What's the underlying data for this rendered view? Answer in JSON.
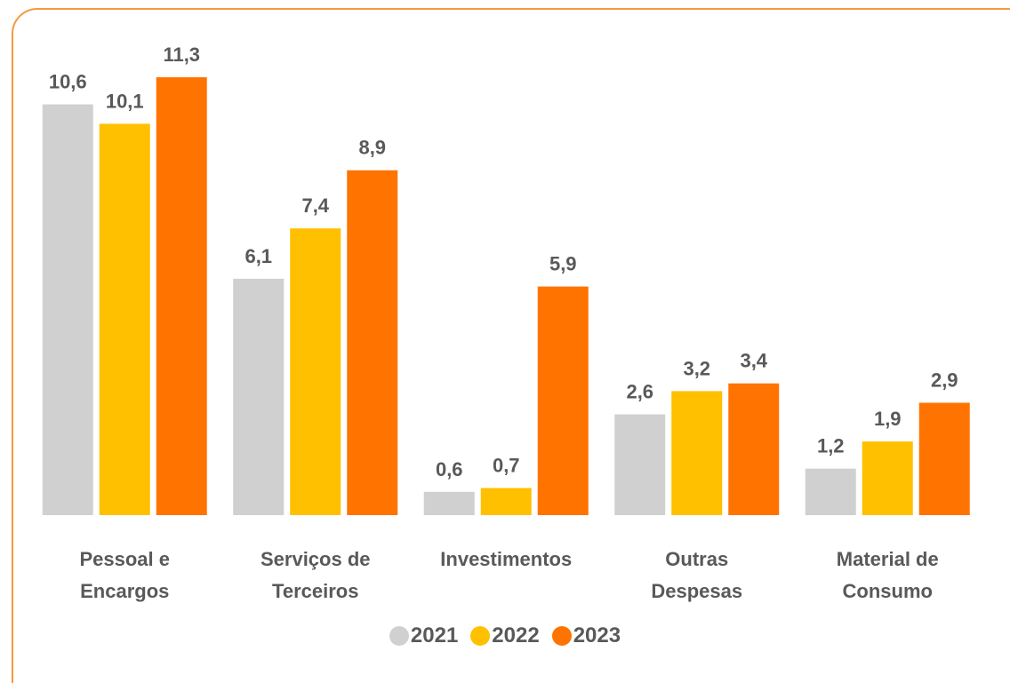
{
  "chart_data": {
    "type": "bar",
    "categories": [
      "Pessoal e Encargos",
      "Serviços de Terceiros",
      "Investimentos",
      "Outras Despesas",
      "Material de Consumo"
    ],
    "series": [
      {
        "name": "2021",
        "color": "#d0d0d0",
        "values": [
          10.6,
          6.1,
          0.6,
          2.6,
          1.2
        ],
        "value_labels": [
          "10,6",
          "6,1",
          "0,6",
          "2,6",
          "1,2"
        ]
      },
      {
        "name": "2022",
        "color": "#ffc000",
        "values": [
          10.1,
          7.4,
          0.7,
          3.2,
          1.9
        ],
        "value_labels": [
          "10,1",
          "7,4",
          "0,7",
          "3,2",
          "1,9"
        ]
      },
      {
        "name": "2023",
        "color": "#ff7300",
        "values": [
          11.3,
          8.9,
          5.9,
          3.4,
          2.9
        ],
        "value_labels": [
          "11,3",
          "8,9",
          "5,9",
          "3,4",
          "2,9"
        ]
      }
    ],
    "legend": "bottom"
  }
}
